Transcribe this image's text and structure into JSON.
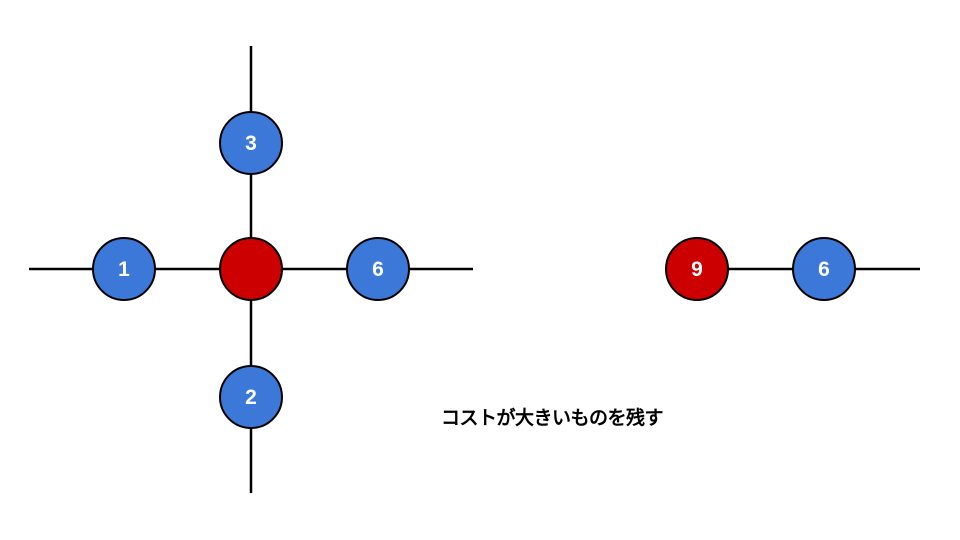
{
  "colors": {
    "blue_node": "#3c78d8",
    "red_node": "#cc0000",
    "edge": "#000000",
    "node_outline": "#000000",
    "node_text": "#ffffff"
  },
  "left_graph": {
    "center": {
      "label": "",
      "color": "red"
    },
    "left": {
      "label": "1",
      "color": "blue"
    },
    "top": {
      "label": "3",
      "color": "blue"
    },
    "right": {
      "label": "6",
      "color": "blue"
    },
    "bottom": {
      "label": "2",
      "color": "blue"
    }
  },
  "right_graph": {
    "merged": {
      "label": "9",
      "color": "red"
    },
    "neighbor": {
      "label": "6",
      "color": "blue"
    }
  },
  "caption": "コストが大きいものを残す"
}
